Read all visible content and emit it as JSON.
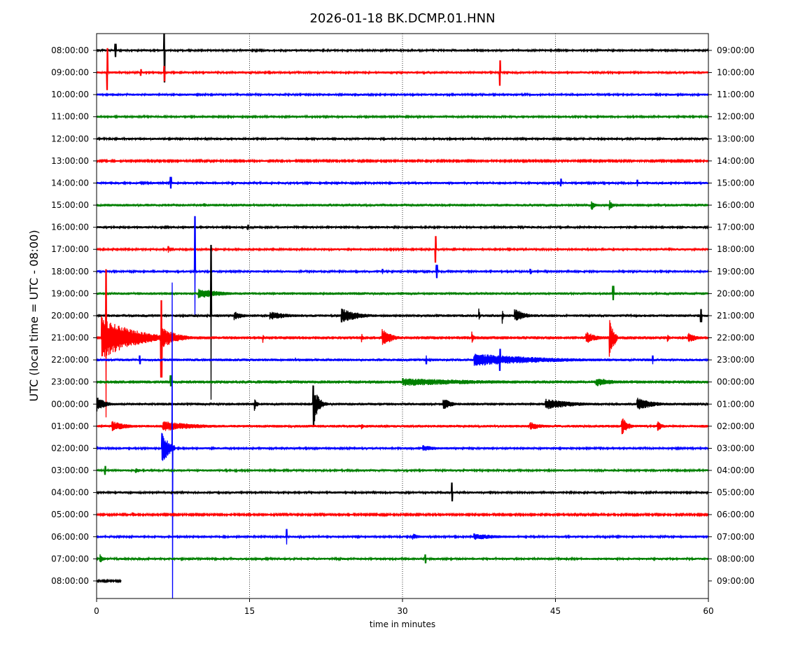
{
  "chart_data": {
    "type": "line",
    "title": "2026-01-18 BK.DCMP.01.HNN",
    "xlabel": "time in minutes",
    "ylabel": "UTC (local time = UTC - 08:00)",
    "xlim": [
      0,
      60
    ],
    "x_ticks": [
      "0",
      "15",
      "30",
      "45",
      "60"
    ],
    "x_tick_values": [
      0,
      15,
      30,
      45,
      60
    ],
    "grid": "vertical dotted",
    "colors": [
      "#000000",
      "#ff0000",
      "#0000ff",
      "#008000"
    ],
    "amplitude_units": "relative to row spacing",
    "rows": [
      {
        "left": "08:00:00",
        "right": "09:00:00",
        "noise": 0.05,
        "events": [
          {
            "t": 1.8,
            "dur": 0.15,
            "up": 0.3,
            "down": 0.3
          },
          {
            "t": 6.6,
            "dur": 0.12,
            "up": 0.85,
            "down": 1.45
          }
        ]
      },
      {
        "left": "09:00:00",
        "right": "10:00:00",
        "noise": 0.05,
        "events": [
          {
            "t": 1.0,
            "dur": 0.12,
            "up": 1.1,
            "down": 0.8
          },
          {
            "t": 6.6,
            "dur": 0.1,
            "up": 0.3,
            "down": 0.4
          },
          {
            "t": 39.5,
            "dur": 0.12,
            "up": 0.55,
            "down": 0.6
          },
          {
            "t": 4.3,
            "dur": 0.1,
            "up": 0.15,
            "down": 0.15
          }
        ]
      },
      {
        "left": "10:00:00",
        "right": "11:00:00",
        "noise": 0.05,
        "events": []
      },
      {
        "left": "11:00:00",
        "right": "12:00:00",
        "noise": 0.05,
        "events": []
      },
      {
        "left": "12:00:00",
        "right": "13:00:00",
        "noise": 0.05,
        "events": [
          {
            "t": 36.8,
            "dur": 0.2,
            "up": 0.12,
            "down": 0.12
          }
        ]
      },
      {
        "left": "13:00:00",
        "right": "14:00:00",
        "noise": 0.04,
        "events": []
      },
      {
        "left": "14:00:00",
        "right": "15:00:00",
        "noise": 0.05,
        "events": [
          {
            "t": 7.2,
            "dur": 0.15,
            "up": 0.28,
            "down": 0.25
          },
          {
            "t": 13.3,
            "dur": 0.4,
            "up": 0.12,
            "down": 0.12
          },
          {
            "t": 45.5,
            "dur": 0.1,
            "up": 0.2,
            "down": 0.15
          },
          {
            "t": 53,
            "dur": 0.1,
            "up": 0.15,
            "down": 0.15
          }
        ]
      },
      {
        "left": "15:00:00",
        "right": "16:00:00",
        "noise": 0.06,
        "events": [
          {
            "t": 10.5,
            "dur": 0.6,
            "up": 0.12,
            "down": 0.12
          },
          {
            "t": 48.5,
            "dur": 0.7,
            "up": 0.3,
            "down": 0.3
          },
          {
            "t": 50.3,
            "dur": 0.6,
            "up": 0.3,
            "down": 0.3
          }
        ]
      },
      {
        "left": "16:00:00",
        "right": "17:00:00",
        "noise": 0.05,
        "events": [
          {
            "t": 14.8,
            "dur": 0.1,
            "up": 0.12,
            "down": 0.12
          }
        ]
      },
      {
        "left": "17:00:00",
        "right": "18:00:00",
        "noise": 0.05,
        "events": [
          {
            "t": 33.2,
            "dur": 0.12,
            "up": 0.6,
            "down": 0.6
          },
          {
            "t": 7.0,
            "dur": 0.1,
            "up": 0.15,
            "down": 0.15
          }
        ]
      },
      {
        "left": "18:00:00",
        "right": "19:00:00",
        "noise": 0.05,
        "events": [
          {
            "t": 9.6,
            "dur": 0.08,
            "up": 2.5,
            "down": 2.0
          },
          {
            "t": 33.3,
            "dur": 0.15,
            "up": 0.3,
            "down": 0.3
          },
          {
            "t": 28,
            "dur": 0.1,
            "up": 0.12,
            "down": 0.12
          },
          {
            "t": 42.5,
            "dur": 0.1,
            "up": 0.12,
            "down": 0.12
          }
        ]
      },
      {
        "left": "19:00:00",
        "right": "20:00:00",
        "noise": 0.06,
        "events": [
          {
            "t": 10,
            "dur": 4.5,
            "up": 0.25,
            "down": 0.25
          },
          {
            "t": 50.6,
            "dur": 0.15,
            "up": 0.35,
            "down": 0.3
          }
        ]
      },
      {
        "left": "20:00:00",
        "right": "21:00:00",
        "noise": 0.06,
        "events": [
          {
            "t": 11.2,
            "dur": 0.08,
            "up": 3.2,
            "down": 3.8
          },
          {
            "t": 13.5,
            "dur": 2,
            "up": 0.2,
            "down": 0.2
          },
          {
            "t": 17,
            "dur": 4,
            "up": 0.2,
            "down": 0.2
          },
          {
            "t": 24,
            "dur": 3.5,
            "up": 0.35,
            "down": 0.35
          },
          {
            "t": 37.5,
            "dur": 0.2,
            "up": 0.3,
            "down": 0.3
          },
          {
            "t": 39.8,
            "dur": 0.2,
            "up": 0.35,
            "down": 0.35
          },
          {
            "t": 41,
            "dur": 2,
            "up": 0.35,
            "down": 0.3
          },
          {
            "t": 59.2,
            "dur": 0.15,
            "up": 0.3,
            "down": 0.3
          }
        ]
      },
      {
        "left": "21:00:00",
        "right": "22:00:00",
        "noise": 0.07,
        "events": [
          {
            "t": 0.9,
            "dur": 0.08,
            "up": 3.1,
            "down": 3.6
          },
          {
            "t": 0.5,
            "dur": 6.2,
            "up": 1.0,
            "down": 1.0
          },
          {
            "t": 6.3,
            "dur": 0.15,
            "up": 1.7,
            "down": 1.8
          },
          {
            "t": 6.4,
            "dur": 3,
            "up": 0.5,
            "down": 0.5
          },
          {
            "t": 16.3,
            "dur": 0.2,
            "up": 0.25,
            "down": 0.25
          },
          {
            "t": 26,
            "dur": 0.4,
            "up": 0.2,
            "down": 0.2
          },
          {
            "t": 28,
            "dur": 1.8,
            "up": 0.45,
            "down": 0.45
          },
          {
            "t": 36.8,
            "dur": 0.4,
            "up": 0.3,
            "down": 0.3
          },
          {
            "t": 48,
            "dur": 2,
            "up": 0.3,
            "down": 0.3
          },
          {
            "t": 50.3,
            "dur": 0.8,
            "up": 1.0,
            "down": 1.2
          },
          {
            "t": 56,
            "dur": 0.4,
            "up": 0.2,
            "down": 0.2
          },
          {
            "t": 58,
            "dur": 1.8,
            "up": 0.25,
            "down": 0.25
          }
        ]
      },
      {
        "left": "22:00:00",
        "right": "23:00:00",
        "noise": 0.06,
        "events": [
          {
            "t": 4.2,
            "dur": 0.1,
            "up": 0.2,
            "down": 0.2
          },
          {
            "t": 19.5,
            "dur": 0.2,
            "up": 0.15,
            "down": 0.15
          },
          {
            "t": 32.3,
            "dur": 0.1,
            "up": 0.2,
            "down": 0.2
          },
          {
            "t": 37,
            "dur": 14,
            "up": 0.3,
            "down": 0.3
          },
          {
            "t": 39.5,
            "dur": 0.12,
            "up": 0.5,
            "down": 0.5
          },
          {
            "t": 54.5,
            "dur": 0.1,
            "up": 0.2,
            "down": 0.2
          }
        ]
      },
      {
        "left": "23:00:00",
        "right": "00:00:00",
        "noise": 0.07,
        "events": [
          {
            "t": 7.2,
            "dur": 0.15,
            "up": 0.3,
            "down": 0.2
          },
          {
            "t": 30,
            "dur": 20,
            "up": 0.18,
            "down": 0.18
          },
          {
            "t": 49,
            "dur": 4,
            "up": 0.2,
            "down": 0.2
          }
        ]
      },
      {
        "left": "00:00:00",
        "right": "01:00:00",
        "noise": 0.06,
        "events": [
          {
            "t": 0,
            "dur": 1.8,
            "up": 0.35,
            "down": 0.35
          },
          {
            "t": 15.5,
            "dur": 0.5,
            "up": 0.3,
            "down": 0.3
          },
          {
            "t": 21.2,
            "dur": 0.5,
            "up": 1.3,
            "down": 1.8
          },
          {
            "t": 21.6,
            "dur": 1.0,
            "up": 0.5,
            "down": 0.5
          },
          {
            "t": 34,
            "dur": 1.5,
            "up": 0.3,
            "down": 0.3
          },
          {
            "t": 44,
            "dur": 6,
            "up": 0.25,
            "down": 0.25
          },
          {
            "t": 53,
            "dur": 3.5,
            "up": 0.3,
            "down": 0.3
          }
        ]
      },
      {
        "left": "01:00:00",
        "right": "02:00:00",
        "noise": 0.06,
        "events": [
          {
            "t": 1.5,
            "dur": 3,
            "up": 0.25,
            "down": 0.25
          },
          {
            "t": 6.5,
            "dur": 7,
            "up": 0.25,
            "down": 0.25
          },
          {
            "t": 26,
            "dur": 0.3,
            "up": 0.2,
            "down": 0.2
          },
          {
            "t": 42.5,
            "dur": 2.5,
            "up": 0.2,
            "down": 0.2
          },
          {
            "t": 51.5,
            "dur": 1.2,
            "up": 0.45,
            "down": 0.45
          },
          {
            "t": 55,
            "dur": 1,
            "up": 0.25,
            "down": 0.25
          }
        ]
      },
      {
        "left": "02:00:00",
        "right": "03:00:00",
        "noise": 0.05,
        "events": [
          {
            "t": 6.4,
            "dur": 1.3,
            "up": 0.9,
            "down": 0.9
          },
          {
            "t": 7.4,
            "dur": 0.08,
            "up": 7.5,
            "down": 6.8
          },
          {
            "t": 32,
            "dur": 3,
            "up": 0.15,
            "down": 0.15
          }
        ]
      },
      {
        "left": "03:00:00",
        "right": "04:00:00",
        "noise": 0.05,
        "events": [
          {
            "t": 0.8,
            "dur": 0.1,
            "up": 0.2,
            "down": 0.2
          },
          {
            "t": 3.8,
            "dur": 1,
            "up": 0.15,
            "down": 0.15
          }
        ]
      },
      {
        "left": "04:00:00",
        "right": "05:00:00",
        "noise": 0.05,
        "events": [
          {
            "t": 34.8,
            "dur": 0.12,
            "up": 0.45,
            "down": 0.4
          }
        ]
      },
      {
        "left": "05:00:00",
        "right": "06:00:00",
        "noise": 0.04,
        "events": [
          {
            "t": 3.5,
            "dur": 1,
            "up": 0.12,
            "down": 0.12
          }
        ]
      },
      {
        "left": "06:00:00",
        "right": "07:00:00",
        "noise": 0.05,
        "events": [
          {
            "t": 18.6,
            "dur": 0.1,
            "up": 0.35,
            "down": 0.35
          },
          {
            "t": 31,
            "dur": 1.5,
            "up": 0.15,
            "down": 0.15
          },
          {
            "t": 37,
            "dur": 6,
            "up": 0.15,
            "down": 0.15
          }
        ]
      },
      {
        "left": "07:00:00",
        "right": "08:00:00",
        "noise": 0.05,
        "events": [
          {
            "t": 0.3,
            "dur": 0.8,
            "up": 0.25,
            "down": 0.25
          },
          {
            "t": 32.2,
            "dur": 0.1,
            "up": 0.2,
            "down": 0.2
          }
        ]
      },
      {
        "left": "08:00:00",
        "right": "09:00:00",
        "noise": 0.04,
        "end": 2.4,
        "events": []
      }
    ]
  }
}
